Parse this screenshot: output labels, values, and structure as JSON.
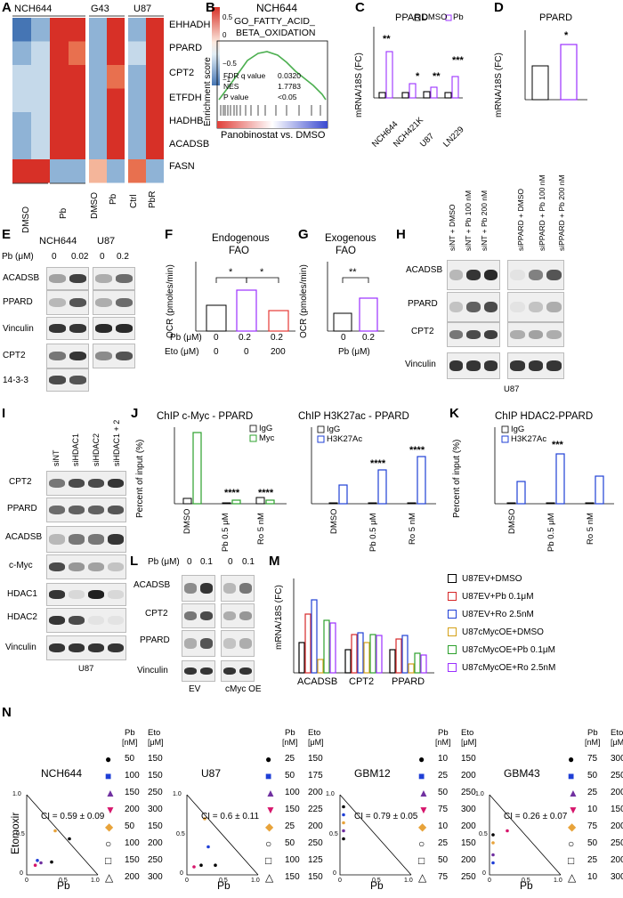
{
  "panels": {
    "A": {
      "letter": "A",
      "groups": [
        "NCH644",
        "G43",
        "U87"
      ],
      "genes": [
        "EHHADH",
        "PPARD",
        "CPT2",
        "ETFDH",
        "HADHB",
        "ACADSB",
        "FASN"
      ],
      "columns": [
        "DMSO",
        "Pb",
        "DMSO",
        "Pb",
        "Ctrl",
        "PbR"
      ],
      "colorbar_ticks": [
        "0.5",
        "0",
        "−0.5",
        "−1"
      ],
      "colors": {
        "high": "#d73027",
        "mid": "#f7f7f7",
        "low": "#4575b4"
      }
    },
    "B": {
      "letter": "B",
      "title": "NCH644",
      "subtitle_1": "GO_FATTY_ACID_",
      "subtitle_2": "BETA_OXIDATION",
      "ylabel": "Enrichment score",
      "xlabel": "Panobinostat vs. DMSO",
      "stats": [
        [
          "FDR q value",
          "0.0320"
        ],
        [
          "NES",
          "1.7783"
        ],
        [
          "P value",
          "<0.05"
        ]
      ]
    },
    "C": {
      "letter": "C",
      "title": "PPARD",
      "ylabel": "mRNA/18S (FC)",
      "legend": [
        "DMSO",
        "Pb"
      ],
      "stars": [
        "**",
        "*",
        "**",
        "***"
      ]
    },
    "D": {
      "letter": "D",
      "title": "PPARD",
      "ylabel": "mRNA/18S (FC)",
      "star": "*"
    },
    "E": {
      "letter": "E",
      "cells": [
        "NCH644",
        "U87"
      ],
      "dose_label": "Pb (μM)",
      "doses": [
        "0",
        "0.02",
        "0",
        "0.2"
      ],
      "proteins": [
        "ACADSB",
        "PPARD",
        "Vinculin",
        "CPT2",
        "14-3-3"
      ]
    },
    "F": {
      "letter": "F",
      "title_1": "Endogenous",
      "title_2": "FAO",
      "ylabel": "OCR (pmoles/min)",
      "row1_label": "Pb (μM)",
      "row1": [
        "0",
        "0.2",
        "0.2"
      ],
      "row2_label": "Eto (μM)",
      "row2": [
        "0",
        "0",
        "200"
      ],
      "stars": [
        "*",
        "*"
      ]
    },
    "G": {
      "letter": "G",
      "title_1": "Exogenous",
      "title_2": "FAO",
      "ylabel": "OCR (pmoles/min)",
      "xlabel": "Pb (μM)",
      "star": "**"
    },
    "H": {
      "letter": "H",
      "lanes": [
        "siNT + DMSO",
        "siNT + Pb 100 nM",
        "siNT + Pb 200 nM",
        "siPPARD + DMSO",
        "siPPARD + Pb 100 nM",
        "siPPARD + Pb 200 nM"
      ],
      "proteins": [
        "ACADSB",
        "PPARD",
        "CPT2",
        "Vinculin"
      ],
      "cell": "U87"
    },
    "I": {
      "letter": "I",
      "lanes": [
        "siNT",
        "siHDAC1",
        "siHDAC2",
        "siHDAC1 + 2"
      ],
      "proteins": [
        "CPT2",
        "PPARD",
        "ACADSB",
        "c-Myc",
        "HDAC1",
        "HDAC2",
        "Vinculin"
      ],
      "cell": "U87"
    },
    "J": {
      "letter": "J",
      "left_title": "ChIP c-Myc - PPARD",
      "left_legend": [
        "IgG",
        "Myc"
      ],
      "right_title": "ChIP H3K27ac - PPARD",
      "right_legend": [
        "IgG",
        "H3K27Ac"
      ],
      "ylabel": "Percent of input (%)",
      "categories": [
        "DMSO",
        "Pb 0.5 μM",
        "Ro 5 nM"
      ],
      "stars": "****"
    },
    "K": {
      "letter": "K",
      "title": "ChIP HDAC2-PPARD",
      "legend": [
        "IgG",
        "H3K27Ac"
      ],
      "ylabel": "Percent of input (%)",
      "categories": [
        "DMSO",
        "Pb 0.5 μM",
        "Ro 5 nM"
      ],
      "star": "***"
    },
    "L": {
      "letter": "L",
      "dose_label": "Pb (μM)",
      "doses": [
        "0",
        "0.1",
        "0",
        "0.1"
      ],
      "proteins": [
        "ACADSB",
        "CPT2",
        "PPARD",
        "Vinculin"
      ],
      "groups": [
        "EV",
        "cMyc OE"
      ]
    },
    "M": {
      "letter": "M",
      "ylabel": "mRNA/18S (FC)",
      "genes": [
        "ACADSB",
        "CPT2",
        "PPARD"
      ],
      "legend": [
        "U87EV+DMSO",
        "U87EV+Pb 0.1μM",
        "U87EV+Ro 2.5nM",
        "U87cMycOE+DMSO",
        "U87cMycOE+Pb 0.1μM",
        "U87cMycOE+Ro 2.5nM"
      ],
      "legend_colors": [
        "#000000",
        "#d62728",
        "#1f3fd6",
        "#d4a017",
        "#2ca02c",
        "#9b30ff"
      ]
    },
    "N": {
      "letter": "N",
      "ylabel": "Etomoxir",
      "xlabel": "Pb",
      "header_pb": "Pb",
      "header_pb_unit": "[nM]",
      "header_eto": "Eto",
      "header_eto_unit": "[μM]",
      "symbols": [
        "●",
        "■",
        "▲",
        "▼",
        "◆",
        "○",
        "□",
        "△"
      ],
      "symbol_colors": [
        "#000",
        "#1f3fd6",
        "#7030a0",
        "#d6156b",
        "#e8a33a",
        "#000",
        "#000",
        "#000"
      ],
      "plots": [
        {
          "name": "NCH644",
          "ci": "CI = 0.59 ± 0.09",
          "pb": [
            "50",
            "100",
            "150",
            "200",
            "50",
            "100",
            "150",
            "200"
          ],
          "eto": [
            "150",
            "150",
            "250",
            "300",
            "150",
            "200",
            "250",
            "300"
          ]
        },
        {
          "name": "U87",
          "ci": "CI = 0.6 ± 0.11",
          "pb": [
            "25",
            "50",
            "100",
            "150",
            "25",
            "50",
            "100",
            "150"
          ],
          "eto": [
            "150",
            "175",
            "200",
            "225",
            "200",
            "250",
            "125",
            "150"
          ]
        },
        {
          "name": "GBM12",
          "ci": "CI = 0.79 ± 0.05",
          "pb": [
            "10",
            "25",
            "50",
            "75",
            "10",
            "25",
            "50",
            "75"
          ],
          "eto": [
            "150",
            "200",
            "250",
            "300",
            "200",
            "150",
            "200",
            "250"
          ]
        },
        {
          "name": "GBM43",
          "ci": "CI = 0.26 ± 0.07",
          "pb": [
            "75",
            "50",
            "25",
            "10",
            "75",
            "50",
            "25",
            "10"
          ],
          "eto": [
            "300",
            "250",
            "200",
            "150",
            "200",
            "250",
            "200",
            "300"
          ]
        }
      ],
      "axis_ticks": [
        "0",
        "0.5",
        "1.0"
      ]
    }
  }
}
